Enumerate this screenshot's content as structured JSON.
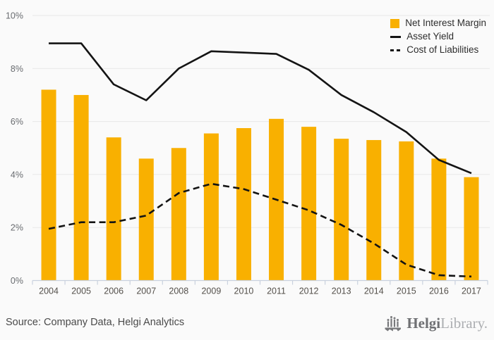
{
  "chart_data": {
    "type": "combo",
    "title": "",
    "xlabel": "",
    "ylabel": "",
    "categories": [
      "2004",
      "2005",
      "2006",
      "2007",
      "2008",
      "2009",
      "2010",
      "2011",
      "2012",
      "2013",
      "2014",
      "2015",
      "2016",
      "2017"
    ],
    "series": [
      {
        "name": "Net Interest Margin",
        "type": "bar",
        "style": "solid",
        "color": "#F9B000",
        "values": [
          7.2,
          7.0,
          5.4,
          4.6,
          5.0,
          5.55,
          5.75,
          6.1,
          5.8,
          5.35,
          5.3,
          5.25,
          4.6,
          3.9
        ]
      },
      {
        "name": "Asset Yield",
        "type": "line",
        "style": "solid",
        "color": "#141414",
        "values": [
          8.95,
          8.95,
          7.4,
          6.8,
          8.0,
          8.65,
          8.6,
          8.55,
          7.95,
          7.0,
          6.35,
          5.6,
          4.55,
          4.05
        ]
      },
      {
        "name": "Cost of Liabilities",
        "type": "line",
        "style": "dashed",
        "color": "#141414",
        "values": [
          1.95,
          2.2,
          2.2,
          2.45,
          3.3,
          3.65,
          3.45,
          3.05,
          2.65,
          2.1,
          1.4,
          0.6,
          0.2,
          0.15
        ]
      }
    ],
    "y_axis": {
      "min": 0,
      "max": 10,
      "step": 2,
      "tick_labels": [
        "0%",
        "2%",
        "4%",
        "6%",
        "8%",
        "10%"
      ]
    },
    "grid": true,
    "legend_position": "top-right",
    "colors": {
      "background": "#FAFAFA",
      "gridline": "#E8E8E8",
      "axis_line": "#C9D1DE",
      "tick_mark": "#C9D1DE",
      "y_tick_label": "#696C70",
      "x_tick_label": "#54504B",
      "legend_text": "#2D2D2D"
    }
  },
  "footer": {
    "source": "Source: Company Data, Helgi Analytics",
    "logo": {
      "brand_bold": "Helgi",
      "brand_light": "Library.",
      "icon_color": "#77787b"
    }
  }
}
